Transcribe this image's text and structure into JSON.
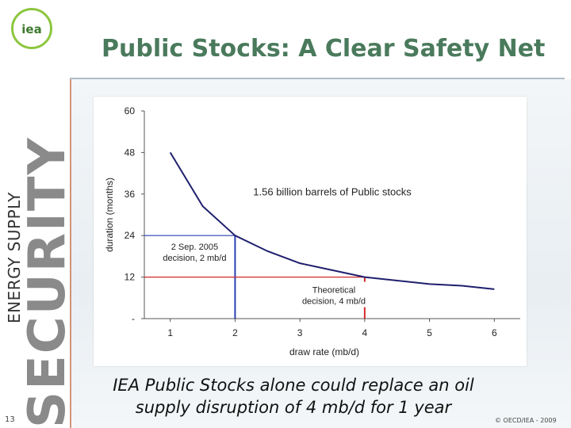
{
  "slide": {
    "logo_text": "iea",
    "title": "Public Stocks: A Clear Safety Net",
    "side_text_energy": "ENERGY SUPPLY",
    "side_text_security": "SECURITY",
    "page_number": "13",
    "caption": "IEA Public Stocks alone could replace an oil supply disruption of 4 mb/d for 1 year",
    "copyright": "© OECD/IEA - 2009"
  },
  "colors": {
    "title": "#4a7a5c",
    "logo_ring": "#8dc63f",
    "curve": "#1f1f6e",
    "line_2": "#2a3fb0",
    "line_4": "#d42a2a"
  },
  "chart_data": {
    "type": "line",
    "title": "",
    "xlabel": "draw rate (mb/d)",
    "ylabel": "duration (months)",
    "xlim": [
      0.6,
      6.4
    ],
    "ylim": [
      0,
      60
    ],
    "x_ticks": [
      "1",
      "2",
      "3",
      "4",
      "5",
      "6"
    ],
    "y_ticks": [
      "60",
      "48",
      "36",
      "24",
      "12",
      "-"
    ],
    "grid": false,
    "series": [
      {
        "x": [
          1,
          1.5,
          2,
          2.5,
          3,
          3.5,
          4,
          4.5,
          5,
          5.5,
          6
        ],
        "y": [
          48,
          32.5,
          24,
          19.5,
          16,
          14,
          12,
          11,
          10,
          9.5,
          8.5
        ]
      }
    ],
    "annotations": [
      {
        "text": "1.56 billion barrels of Public stocks"
      },
      {
        "text_lines": [
          "2 Sep. 2005",
          "decision, 2 mb/d"
        ],
        "x": 2,
        "y": 24
      },
      {
        "text_lines": [
          "Theoretical",
          "decision, 4 mb/d"
        ],
        "x": 4,
        "y": 12
      }
    ]
  }
}
